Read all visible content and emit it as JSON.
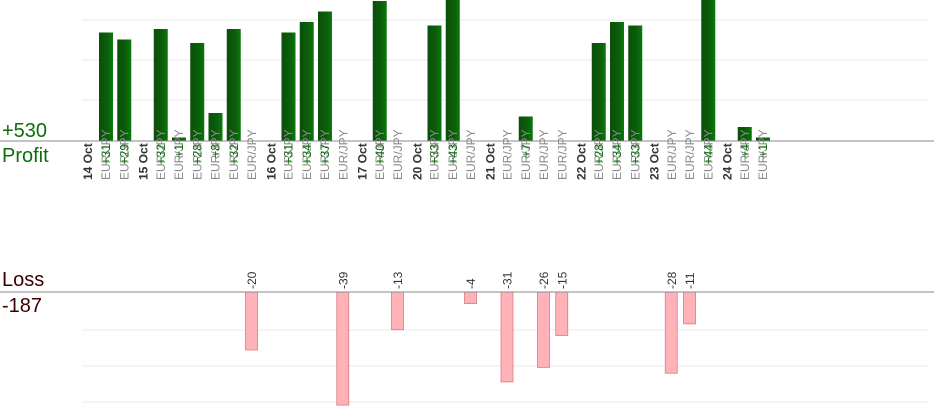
{
  "summary": {
    "profit_total": "+530",
    "profit_label": "Profit",
    "loss_label": "Loss",
    "loss_total": "-187"
  },
  "colors": {
    "profit_bar": "#0b5e0b",
    "profit_text": "#0b6e0b",
    "loss_bar": "#ffb3b8",
    "loss_stroke": "#d97b84",
    "loss_text": "#333333",
    "date_text": "#333333",
    "pair_text": "#8a8a8a",
    "grid": "#e8e8e8",
    "axis": "#888888"
  },
  "chart_data": {
    "type": "bar",
    "grid": true,
    "trades": [
      {
        "pair": "EUR/JPY",
        "value": 31,
        "label": "+31"
      },
      {
        "pair": "EUR/JPY",
        "value": 29,
        "label": "+29"
      },
      {
        "date": "15 Oct"
      },
      {
        "pair": "EUR/JPY",
        "value": 32,
        "label": "+32"
      },
      {
        "pair": "EUR/JPY",
        "value": 1,
        "label": "+1"
      },
      {
        "pair": "EUR/JPY",
        "value": 28,
        "label": "+28"
      },
      {
        "pair": "EUR/JPY",
        "value": 8,
        "label": "+8"
      },
      {
        "pair": "EUR/JPY",
        "value": 32,
        "label": "+32"
      },
      {
        "pair": "EUR/JPY",
        "value": -20,
        "label": "-20"
      },
      {
        "date": "16 Oct"
      },
      {
        "pair": "EUR/JPY",
        "value": 31,
        "label": "+31"
      },
      {
        "pair": "EUR/JPY",
        "value": 34,
        "label": "+34"
      },
      {
        "pair": "EUR/JPY",
        "value": 37,
        "label": "+37"
      },
      {
        "pair": "EUR/JPY",
        "value": -39,
        "label": "-39"
      },
      {
        "date": "17 Oct"
      },
      {
        "pair": "EUR/JPY",
        "value": 40,
        "label": "+40"
      },
      {
        "pair": "EUR/JPY",
        "value": -13,
        "label": "-13"
      },
      {
        "date": "20 Oct"
      },
      {
        "pair": "EUR/JPY",
        "value": 33,
        "label": "+33"
      },
      {
        "pair": "EUR/JPY",
        "value": 43,
        "label": "+43"
      },
      {
        "pair": "EUR/JPY",
        "value": -4,
        "label": "-4"
      },
      {
        "date": "21 Oct"
      },
      {
        "pair": "EUR/JPY",
        "value": -31,
        "label": "-31"
      },
      {
        "pair": "EUR/JPY",
        "value": 7,
        "label": "+7"
      },
      {
        "pair": "EUR/JPY",
        "value": -26,
        "label": "-26"
      },
      {
        "pair": "EUR/JPY",
        "value": -15,
        "label": "-15"
      },
      {
        "date": "22 Oct"
      },
      {
        "pair": "EUR/JPY",
        "value": 28,
        "label": "+28"
      },
      {
        "pair": "EUR/JPY",
        "value": 34,
        "label": "+34"
      },
      {
        "pair": "EUR/JPY",
        "value": 33,
        "label": "+33"
      },
      {
        "date": "23 Oct"
      },
      {
        "pair": "EUR/JPY",
        "value": -28,
        "label": "-28"
      },
      {
        "pair": "EUR/JPY",
        "value": -11,
        "label": "-11"
      },
      {
        "pair": "EUR/JPY",
        "value": 44,
        "label": "+44"
      },
      {
        "date": "24 Oct"
      },
      {
        "pair": "EUR/JPY",
        "value": 4,
        "label": "+4"
      },
      {
        "pair": "EUR/JPY",
        "value": 1,
        "label": "+1"
      }
    ],
    "first_date": "14 Oct"
  }
}
